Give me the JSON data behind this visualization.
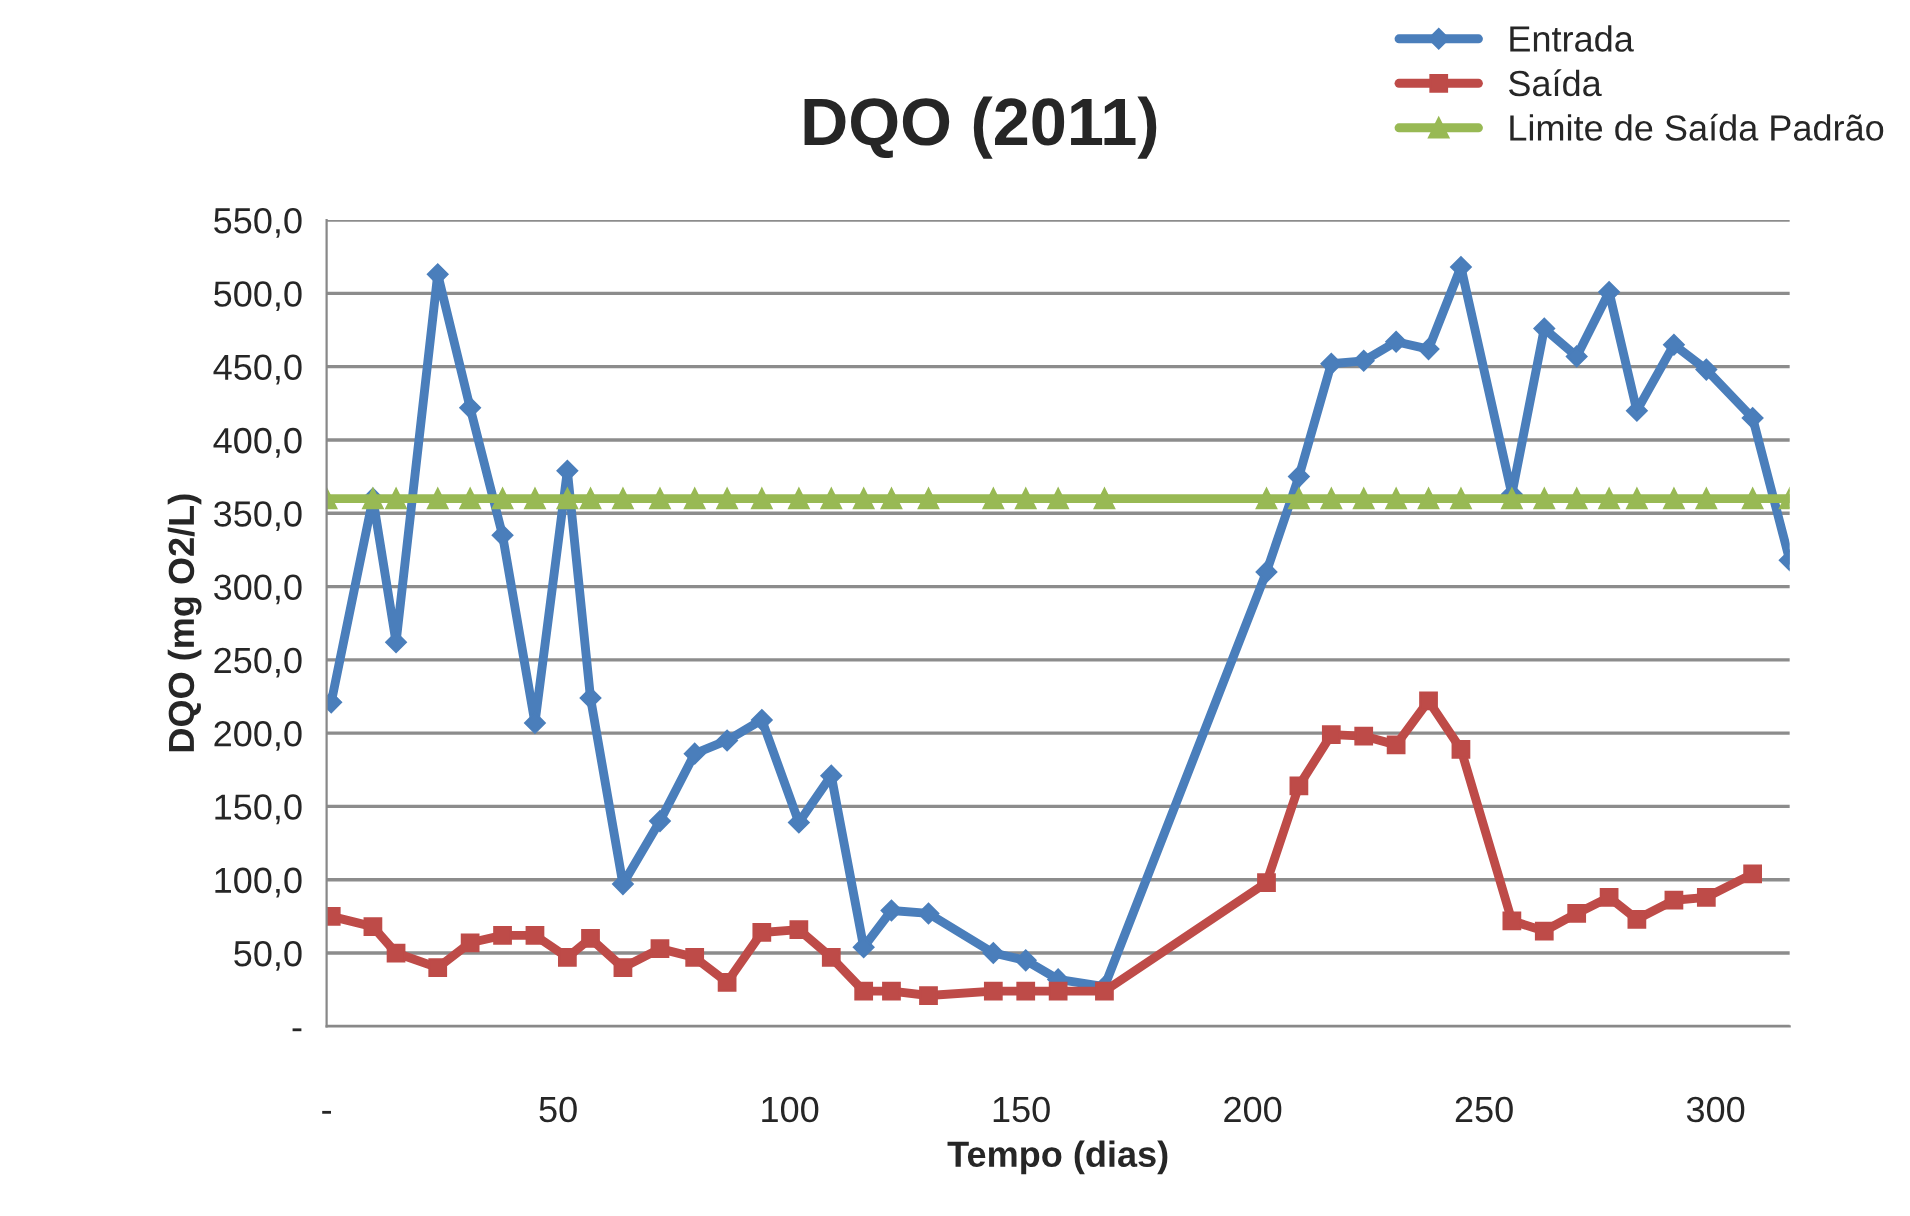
{
  "chart_data": {
    "type": "line",
    "title": "DQO (2011)",
    "xlabel": "Tempo (dias)",
    "ylabel": "DQO (mg O2/L)",
    "series": [
      {
        "name": "Entrada",
        "color": "#4a7ebb",
        "marker": "diamond",
        "x": [
          1,
          10,
          15,
          24,
          31,
          38,
          45,
          52,
          57,
          64,
          72,
          79.5,
          86.5,
          94,
          102,
          109,
          116,
          122,
          130,
          144,
          151,
          158,
          168,
          203,
          210,
          217,
          224,
          231,
          238,
          245,
          256,
          263,
          270,
          277,
          283,
          291,
          298,
          308,
          316
        ],
        "values": [
          221,
          360,
          262,
          513,
          422,
          335,
          207,
          379,
          224,
          97,
          140,
          186,
          195,
          209,
          139,
          171,
          54,
          79,
          77,
          50,
          45,
          32,
          27,
          310,
          375,
          452,
          454,
          467,
          462,
          518,
          363,
          476,
          457,
          501,
          420,
          465,
          448,
          415,
          318
        ]
      },
      {
        "name": "Saída",
        "color": "#be4b48",
        "marker": "square",
        "x": [
          1,
          10,
          15,
          24,
          31,
          38,
          45,
          52,
          57,
          64,
          72,
          79.5,
          86.5,
          94,
          102,
          109,
          116,
          122,
          130,
          144,
          151,
          158,
          168,
          203,
          210,
          217,
          224,
          231,
          238,
          245,
          256,
          263,
          270,
          277,
          283,
          291,
          298,
          308
        ],
        "values": [
          75,
          68,
          50,
          40,
          57,
          62,
          62,
          47,
          60,
          40,
          53,
          47,
          30,
          64,
          66,
          47,
          24,
          24,
          21,
          24,
          24,
          24,
          24,
          98,
          164,
          199,
          198,
          192,
          222,
          189,
          72,
          65,
          77,
          88,
          73,
          86,
          88,
          104
        ]
      },
      {
        "name": "Limite de Saída Padrão",
        "color": "#98b954",
        "marker": "triangle",
        "x": [
          0,
          10,
          15,
          24,
          31,
          38,
          45,
          52,
          57,
          64,
          72,
          79.5,
          86.5,
          94,
          102,
          109,
          116,
          122,
          130,
          144,
          151,
          158,
          168,
          203,
          210,
          217,
          224,
          231,
          238,
          245,
          256,
          263,
          270,
          277,
          283,
          291,
          298,
          308,
          316
        ],
        "values": [
          360,
          360,
          360,
          360,
          360,
          360,
          360,
          360,
          360,
          360,
          360,
          360,
          360,
          360,
          360,
          360,
          360,
          360,
          360,
          360,
          360,
          360,
          360,
          360,
          360,
          360,
          360,
          360,
          360,
          360,
          360,
          360,
          360,
          360,
          360,
          360,
          360,
          360,
          360
        ]
      }
    ],
    "xlim": [
      0,
      316
    ],
    "xticks": [
      {
        "value": 0,
        "label": "-"
      },
      50,
      100,
      150,
      200,
      250,
      300
    ],
    "ylim": [
      0,
      550
    ],
    "yticks": [
      {
        "value": 0,
        "label": "-"
      },
      {
        "value": 50,
        "label": "50,0"
      },
      {
        "value": 100,
        "label": "100,0"
      },
      {
        "value": 150,
        "label": "150,0"
      },
      {
        "value": 200,
        "label": "200,0"
      },
      {
        "value": 250,
        "label": "250,0"
      },
      {
        "value": 300,
        "label": "300,0"
      },
      {
        "value": 350,
        "label": "350,0"
      },
      {
        "value": 400,
        "label": "400,0"
      },
      {
        "value": 450,
        "label": "450,0"
      },
      {
        "value": 500,
        "label": "500,0"
      },
      {
        "value": 550,
        "label": "550,0"
      }
    ],
    "grid": "y",
    "legend": "top right",
    "line_style": "solid"
  }
}
